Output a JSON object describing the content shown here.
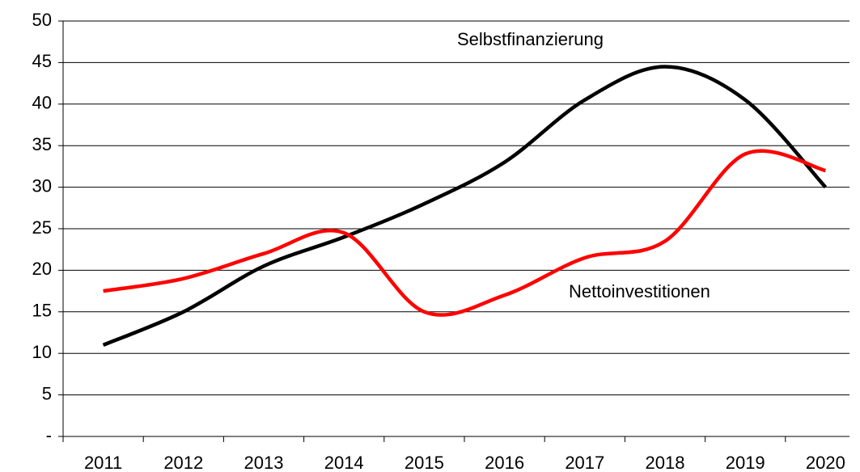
{
  "chart_data": {
    "type": "line",
    "categories": [
      "2011",
      "2012",
      "2013",
      "2014",
      "2015",
      "2016",
      "2017",
      "2018",
      "2019",
      "2020"
    ],
    "series": [
      {
        "name": "Selbstfinanzierung",
        "color": "#000000",
        "values": [
          11,
          15,
          20.5,
          24,
          28,
          33,
          40.5,
          44.5,
          40.5,
          30
        ]
      },
      {
        "name": "Nettoinvestitionen",
        "color": "#ff0000",
        "values": [
          17.5,
          19,
          22,
          24.5,
          15,
          17,
          21.5,
          23.5,
          34,
          32
        ]
      }
    ],
    "ylim": [
      0,
      50
    ],
    "yticks": [
      {
        "value": 0,
        "label": "-"
      },
      5,
      10,
      15,
      20,
      25,
      30,
      35,
      40,
      45,
      50
    ],
    "grid": true
  }
}
